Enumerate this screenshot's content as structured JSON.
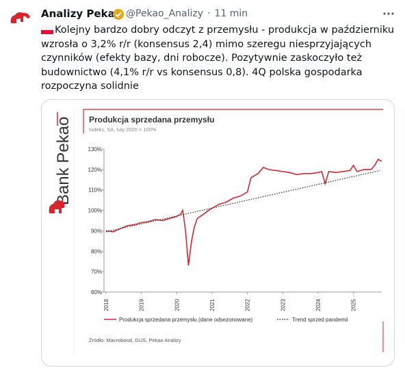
{
  "header": {
    "name": "Analizy Pekao",
    "handle": "@Pekao_Analizy",
    "time": "11 min"
  },
  "tweet": {
    "lines": [
      "Kolejny bardzo dobry odczyt z przemysłu - produkcja w październiku",
      "wzrosła o 3,2% r/r (konsensus 2,4) mimo szeregu niesprzyjających",
      "czynników (efekty bazy, dni robocze). Pozytywnie zaskoczyło też",
      "budownictwo (4,1% r/r vs konsensus 0,8). 4Q polska gospodarka",
      "rozpoczyna solidnie"
    ]
  },
  "brand": "Bank Pekao",
  "chart_data": {
    "type": "line",
    "title": "Produkcja sprzedana przemysłu",
    "subtitle": "Indeks, SA, luty 2020 = 100%",
    "source": "Źródło: Macrobond, GUS, Pekao Analizy",
    "xlim": [
      2018,
      2025.8
    ],
    "xticks": [
      2018,
      2019,
      2020,
      2021,
      2022,
      2023,
      2024,
      2025
    ],
    "ylim": [
      60,
      130
    ],
    "yticks": [
      {
        "value": 60,
        "label": "60%"
      },
      {
        "value": 70,
        "label": "70%"
      },
      {
        "value": 80,
        "label": "80%"
      },
      {
        "value": 90,
        "label": "90%"
      },
      {
        "value": 100,
        "label": "100%"
      },
      {
        "value": 110,
        "label": "110%"
      },
      {
        "value": 120,
        "label": "120%"
      },
      {
        "value": 130,
        "label": "130%"
      }
    ],
    "grid": false,
    "series": [
      {
        "name": "Produkcja sprzedana przemysłu (dane odsezonowane)",
        "color": "#d7262e",
        "dash": "solid",
        "x": [
          2018.0,
          2018.2,
          2018.4,
          2018.6,
          2018.8,
          2019.0,
          2019.2,
          2019.4,
          2019.6,
          2019.8,
          2020.0,
          2020.1,
          2020.17,
          2020.25,
          2020.33,
          2020.42,
          2020.5,
          2020.58,
          2020.75,
          2020.9,
          2021.0,
          2021.2,
          2021.4,
          2021.6,
          2021.8,
          2022.0,
          2022.1,
          2022.3,
          2022.45,
          2022.6,
          2022.8,
          2023.0,
          2023.2,
          2023.4,
          2023.6,
          2023.8,
          2024.0,
          2024.1,
          2024.2,
          2024.3,
          2024.5,
          2024.7,
          2024.9,
          2025.0,
          2025.1,
          2025.3,
          2025.5,
          2025.6,
          2025.7,
          2025.8
        ],
        "values": [
          90,
          89.5,
          91,
          92.5,
          93,
          94,
          94.5,
          95.5,
          95,
          96,
          97,
          98,
          100,
          90,
          73,
          85,
          92,
          96,
          98,
          100,
          101,
          103,
          104,
          106,
          107,
          109,
          116,
          118,
          121,
          120,
          119.5,
          119,
          118.5,
          117.5,
          118,
          118,
          118.5,
          119,
          113,
          119,
          118.5,
          119,
          119.5,
          122,
          119,
          120,
          120,
          122,
          125,
          124
        ]
      },
      {
        "name": "Trend sprzed pandemii",
        "color": "#333333",
        "dash": "dotted",
        "x": [
          2018.0,
          2025.75
        ],
        "values": [
          89.5,
          119.5
        ]
      }
    ]
  }
}
